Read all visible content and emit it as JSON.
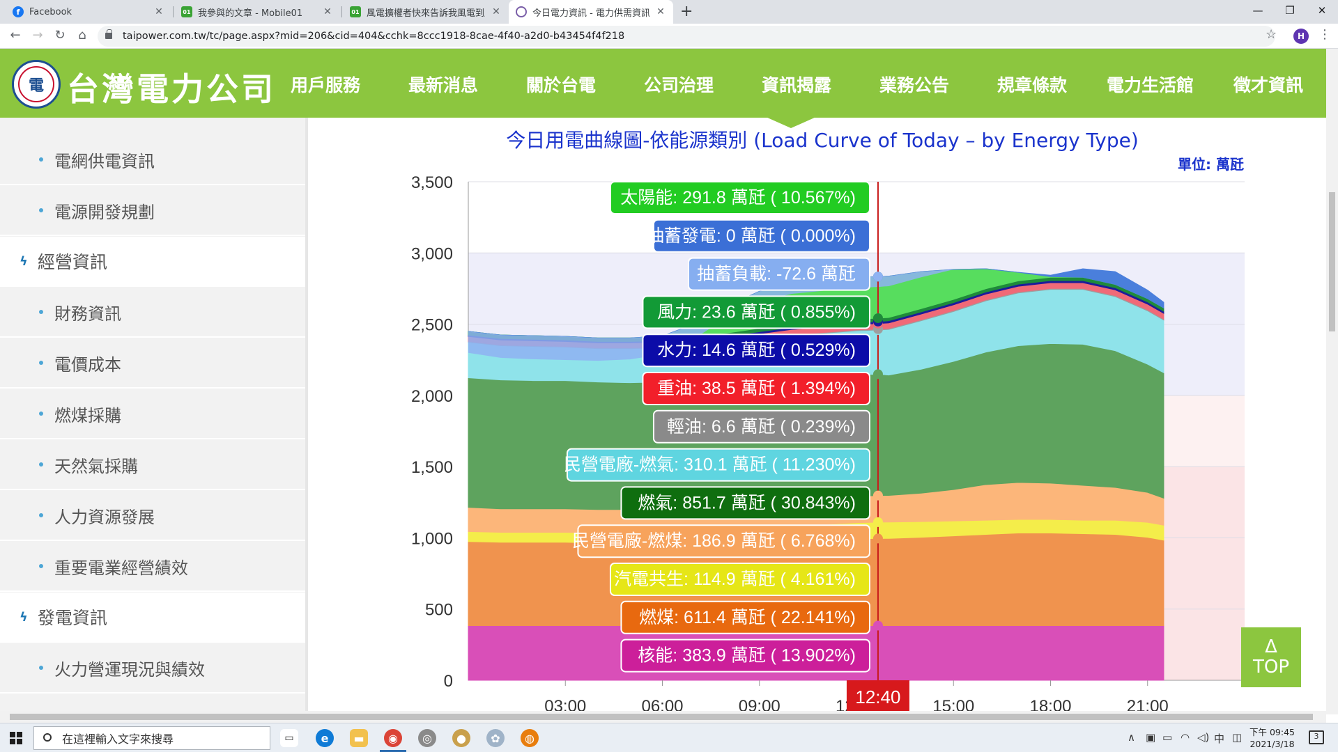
{
  "browser": {
    "tabs": [
      {
        "title": "Facebook",
        "favicon": "facebook-icon",
        "color": "#1877f2",
        "letter": "f"
      },
      {
        "title": "我參與的文章 - Mobile01",
        "favicon": "mobile01-icon",
        "color": "#3aa335",
        "letter": "01"
      },
      {
        "title": "風電擴權者快來告訴我風電到底？",
        "favicon": "mobile01-icon",
        "color": "#3aa335",
        "letter": "01"
      },
      {
        "title": "今日電力資訊 - 電力供需資訊 - 資",
        "favicon": "taipower-icon",
        "color": "#7a5ea8",
        "letter": ""
      }
    ],
    "url": "taipower.com.tw/tc/page.aspx?mid=206&cid=404&cchk=8ccc1918-8cae-4f40-a2d0-b43454f4f218",
    "profile_letter": "H"
  },
  "site": {
    "logo_text": "台灣電力公司",
    "nav": [
      "用戶服務",
      "最新消息",
      "關於台電",
      "公司治理",
      "資訊揭露",
      "業務公告",
      "規章條款",
      "電力生活館",
      "徵才資訊"
    ]
  },
  "sidebar": {
    "items": [
      {
        "label": "電網供電資訊",
        "type": "sub"
      },
      {
        "label": "電源開發規劃",
        "type": "sub"
      },
      {
        "label": "經營資訊",
        "type": "cat"
      },
      {
        "label": "財務資訊",
        "type": "sub"
      },
      {
        "label": "電價成本",
        "type": "sub"
      },
      {
        "label": "燃煤採購",
        "type": "sub"
      },
      {
        "label": "天然氣採購",
        "type": "sub"
      },
      {
        "label": "人力資源發展",
        "type": "sub"
      },
      {
        "label": "重要電業經營績效",
        "type": "sub"
      },
      {
        "label": "發電資訊",
        "type": "cat"
      },
      {
        "label": "火力營運現況與績效",
        "type": "sub"
      }
    ]
  },
  "chart_data": {
    "type": "area",
    "title": "今日用電曲線圖-依能源類別 (Load Curve of Today – by Energy Type)",
    "unit_label": "單位: 萬瓩",
    "y_ticks": [
      "0",
      "500",
      "1,000",
      "1,500",
      "2,000",
      "2,500",
      "3,000",
      "3,500"
    ],
    "x_ticks": [
      "03:00",
      "06:00",
      "09:00",
      "12:00",
      "15:00",
      "18:00",
      "21:00"
    ],
    "ylim": [
      0,
      3500
    ],
    "xlim_hours": [
      0,
      24
    ],
    "current_time": "12:40",
    "x": [
      0,
      1,
      2,
      3,
      4,
      5,
      6,
      7,
      8,
      9,
      10,
      11,
      12,
      12.67,
      13,
      14,
      15,
      16,
      17,
      18,
      19,
      20,
      21,
      21.5
    ],
    "series": [
      {
        "name": "核能",
        "color": "#d94fb8",
        "values": [
          383.9,
          383.9,
          383.9,
          383.9,
          383.9,
          383.9,
          383.9,
          383.9,
          383.9,
          383.9,
          383.9,
          383.9,
          383.9,
          383.9,
          383.9,
          383.9,
          383.9,
          383.9,
          383.9,
          383.9,
          383.9,
          383.9,
          383.9,
          383.9
        ]
      },
      {
        "name": "燃煤",
        "color": "#f0934e",
        "values": [
          590,
          585,
          585,
          585,
          580,
          580,
          585,
          585,
          590,
          595,
          600,
          605,
          610,
          611.4,
          612,
          620,
          630,
          640,
          650,
          650,
          645,
          640,
          620,
          600
        ]
      },
      {
        "name": "汽電共生",
        "color": "#f4ed4a",
        "values": [
          70,
          70,
          70,
          70,
          70,
          70,
          70,
          75,
          80,
          90,
          100,
          105,
          112,
          114.9,
          115,
          110,
          105,
          100,
          95,
          95,
          95,
          100,
          105,
          105
        ]
      },
      {
        "name": "民營電廠-燃煤",
        "color": "#fcb67a",
        "values": [
          170,
          165,
          165,
          165,
          165,
          165,
          165,
          170,
          175,
          180,
          185,
          186,
          186,
          186.9,
          187,
          200,
          220,
          250,
          260,
          255,
          245,
          230,
          210,
          190
        ]
      },
      {
        "name": "燃氣",
        "color": "#5ea35e",
        "values": [
          910,
          905,
          900,
          900,
          895,
          890,
          890,
          870,
          860,
          855,
          850,
          851,
          852,
          851.7,
          845,
          870,
          900,
          930,
          960,
          980,
          990,
          960,
          900,
          880
        ]
      },
      {
        "name": "民營電廠-燃氣",
        "color": "#8fe3ea",
        "values": [
          250,
          240,
          240,
          235,
          235,
          240,
          240,
          260,
          270,
          285,
          300,
          305,
          310,
          310.1,
          320,
          340,
          350,
          360,
          370,
          380,
          385,
          380,
          375,
          370
        ]
      },
      {
        "name": "輕油",
        "color": "#9e9e9e",
        "values": [
          5,
          5,
          5,
          5,
          5,
          5,
          5,
          5,
          5,
          6,
          6,
          6,
          6,
          6.6,
          7,
          7,
          7,
          7,
          7,
          7,
          7,
          7,
          7,
          7
        ]
      },
      {
        "name": "重油",
        "color": "#f06a78",
        "values": [
          35,
          35,
          35,
          35,
          35,
          35,
          35,
          36,
          37,
          38,
          38,
          38,
          38,
          38.5,
          39,
          40,
          40,
          40,
          40,
          40,
          40,
          40,
          40,
          40
        ]
      },
      {
        "name": "水力",
        "color": "#1c1c9a",
        "values": [
          10,
          10,
          10,
          10,
          10,
          10,
          10,
          12,
          13,
          14,
          14,
          14,
          14,
          14.6,
          15,
          15,
          15,
          15,
          15,
          15,
          15,
          15,
          15,
          15
        ]
      },
      {
        "name": "風力",
        "color": "#1f8a3a",
        "values": [
          25,
          25,
          25,
          25,
          24,
          24,
          24,
          24,
          24,
          24,
          24,
          24,
          24,
          23.6,
          23,
          23,
          23,
          23,
          23,
          23,
          23,
          23,
          23,
          23
        ]
      },
      {
        "name": "太陽能",
        "color": "#57dd5e",
        "values": [
          0,
          0,
          0,
          0,
          0,
          0,
          10,
          80,
          190,
          260,
          285,
          290,
          291,
          291.8,
          290,
          260,
          210,
          140,
          60,
          5,
          0,
          0,
          0,
          0
        ]
      },
      {
        "name": "抽蓄發電",
        "color": "#4a7fdc",
        "values": [
          0,
          0,
          0,
          0,
          0,
          0,
          0,
          0,
          0,
          0,
          0,
          0,
          0,
          0,
          0,
          0,
          0,
          0,
          0,
          10,
          60,
          90,
          60,
          40
        ]
      },
      {
        "name": "抽蓄負載",
        "color": "#8fb2f2",
        "values": [
          -150,
          -160,
          -165,
          -165,
          -160,
          -150,
          -130,
          -100,
          -80,
          -75,
          -73,
          -73,
          -72,
          -72.6,
          -70,
          -40,
          0,
          0,
          0,
          0,
          0,
          0,
          0,
          0
        ]
      }
    ],
    "tooltips": [
      {
        "text": "太陽能: 291.8 萬瓩 ( 10.567%)",
        "bg": "#22cc22",
        "value": 291.8
      },
      {
        "text": "抽蓄發電: 0 萬瓩 ( 0.000%)",
        "bg": "#3b6fd6",
        "value": 0
      },
      {
        "text": "抽蓄負載: -72.6 萬瓩",
        "bg": "#86aef0",
        "value": -72.6
      },
      {
        "text": "風力: 23.6 萬瓩 ( 0.855%)",
        "bg": "#129a36",
        "value": 23.6
      },
      {
        "text": "水力: 14.6 萬瓩 ( 0.529%)",
        "bg": "#0c0ca8",
        "value": 14.6
      },
      {
        "text": "重油: 38.5 萬瓩 ( 1.394%)",
        "bg": "#f21f2a",
        "value": 38.5
      },
      {
        "text": "輕油: 6.6 萬瓩 ( 0.239%)",
        "bg": "#8a8a8a",
        "value": 6.6
      },
      {
        "text": "民營電廠-燃氣: 310.1 萬瓩 ( 11.230%)",
        "bg": "#5fd5e0",
        "value": 310.1
      },
      {
        "text": "燃氣: 851.7 萬瓩 ( 30.843%)",
        "bg": "#0f6e0f",
        "value": 851.7
      },
      {
        "text": "民營電廠-燃煤: 186.9 萬瓩 ( 6.768%)",
        "bg": "#f7a35c",
        "value": 186.9
      },
      {
        "text": "汽電共生: 114.9 萬瓩 ( 4.161%)",
        "bg": "#e6e617",
        "value": 114.9
      },
      {
        "text": "燃煤: 611.4 萬瓩 ( 22.141%)",
        "bg": "#e8690f",
        "value": 611.4
      },
      {
        "text": "核能: 383.9 萬瓩 ( 13.902%)",
        "bg": "#cc1f9a",
        "value": 383.9
      }
    ]
  },
  "top_button": {
    "arrow": "Δ",
    "label": "TOP"
  },
  "taskbar": {
    "search_placeholder": "在這裡輸入文字來搜尋",
    "ime": "中",
    "time": "下午 09:45",
    "date": "2021/3/18",
    "notifications": "3"
  }
}
